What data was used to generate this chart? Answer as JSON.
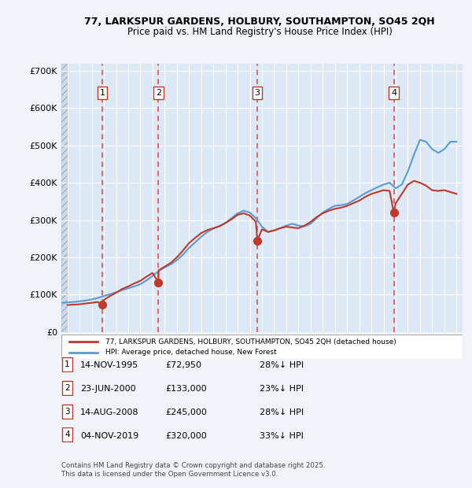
{
  "title_line1": "77, LARKSPUR GARDENS, HOLBURY, SOUTHAMPTON, SO45 2QH",
  "title_line2": "Price paid vs. HM Land Registry's House Price Index (HPI)",
  "ylabel": "",
  "background_color": "#f0f4fa",
  "plot_bg_color": "#dce8f5",
  "hatch_color": "#c0cfe0",
  "grid_color": "#ffffff",
  "sale_dates": [
    1995.87,
    2000.48,
    2008.62,
    2019.84
  ],
  "sale_prices": [
    72950,
    133000,
    245000,
    320000
  ],
  "sale_labels": [
    "1",
    "2",
    "3",
    "4"
  ],
  "sale_info": [
    {
      "label": "1",
      "date": "14-NOV-1995",
      "price": "£72,950",
      "pct": "28%↓ HPI"
    },
    {
      "label": "2",
      "date": "23-JUN-2000",
      "price": "£133,000",
      "pct": "23%↓ HPI"
    },
    {
      "label": "3",
      "date": "14-AUG-2008",
      "price": "£245,000",
      "pct": "28%↓ HPI"
    },
    {
      "label": "4",
      "date": "04-NOV-2019",
      "price": "£320,000",
      "pct": "33%↓ HPI"
    }
  ],
  "hpi_color": "#5b9bd5",
  "price_color": "#c0392b",
  "marker_color": "#c0392b",
  "vline_color": "#e05050",
  "ylim": [
    0,
    720000
  ],
  "yticks": [
    0,
    100000,
    200000,
    300000,
    400000,
    500000,
    600000,
    700000
  ],
  "ytick_labels": [
    "£0",
    "£100K",
    "£200K",
    "£300K",
    "£400K",
    "£500K",
    "£600K",
    "£700K"
  ],
  "xlim_start": 1992.5,
  "xlim_end": 2025.5,
  "xticks": [
    1993,
    1994,
    1995,
    1996,
    1997,
    1998,
    1999,
    2000,
    2001,
    2002,
    2003,
    2004,
    2005,
    2006,
    2007,
    2008,
    2009,
    2010,
    2011,
    2012,
    2013,
    2014,
    2015,
    2016,
    2017,
    2018,
    2019,
    2020,
    2021,
    2022,
    2023,
    2024,
    2025
  ],
  "legend_label_price": "77, LARKSPUR GARDENS, HOLBURY, SOUTHAMPTON, SO45 2QH (detached house)",
  "legend_label_hpi": "HPI: Average price, detached house, New Forest",
  "footer": "Contains HM Land Registry data © Crown copyright and database right 2025.\nThis data is licensed under the Open Government Licence v3.0.",
  "hpi_x": [
    1992.5,
    1993.0,
    1993.5,
    1994.0,
    1994.5,
    1995.0,
    1995.5,
    1996.0,
    1996.5,
    1997.0,
    1997.5,
    1998.0,
    1998.5,
    1999.0,
    1999.5,
    2000.0,
    2000.5,
    2001.0,
    2001.5,
    2002.0,
    2002.5,
    2003.0,
    2003.5,
    2004.0,
    2004.5,
    2005.0,
    2005.5,
    2006.0,
    2006.5,
    2007.0,
    2007.5,
    2008.0,
    2008.5,
    2009.0,
    2009.5,
    2010.0,
    2010.5,
    2011.0,
    2011.5,
    2012.0,
    2012.5,
    2013.0,
    2013.5,
    2014.0,
    2014.5,
    2015.0,
    2015.5,
    2016.0,
    2016.5,
    2017.0,
    2017.5,
    2018.0,
    2018.5,
    2019.0,
    2019.5,
    2020.0,
    2020.5,
    2021.0,
    2021.5,
    2022.0,
    2022.5,
    2023.0,
    2023.5,
    2024.0,
    2024.5,
    2025.0
  ],
  "hpi_y": [
    78000,
    79000,
    80000,
    82000,
    84000,
    87000,
    91000,
    96000,
    101000,
    106000,
    112000,
    117000,
    122000,
    128000,
    138000,
    150000,
    163000,
    173000,
    181000,
    192000,
    207000,
    225000,
    240000,
    255000,
    268000,
    277000,
    284000,
    292000,
    305000,
    318000,
    325000,
    320000,
    305000,
    282000,
    268000,
    272000,
    278000,
    285000,
    290000,
    285000,
    283000,
    290000,
    305000,
    320000,
    330000,
    338000,
    340000,
    343000,
    352000,
    362000,
    372000,
    380000,
    388000,
    395000,
    400000,
    385000,
    395000,
    430000,
    475000,
    515000,
    510000,
    490000,
    480000,
    490000,
    510000,
    510000
  ],
  "price_x": [
    1993.0,
    1993.5,
    1994.0,
    1994.5,
    1995.0,
    1995.5,
    1995.87,
    1996.0,
    1996.5,
    1997.0,
    1997.5,
    1998.0,
    1998.5,
    1999.0,
    1999.5,
    2000.0,
    2000.48,
    2000.5,
    2001.0,
    2001.5,
    2002.0,
    2002.5,
    2003.0,
    2003.5,
    2004.0,
    2004.5,
    2005.0,
    2005.5,
    2006.0,
    2006.5,
    2007.0,
    2007.5,
    2008.0,
    2008.5,
    2008.62,
    2009.0,
    2009.5,
    2010.0,
    2010.5,
    2011.0,
    2011.5,
    2012.0,
    2012.5,
    2013.0,
    2013.5,
    2014.0,
    2014.5,
    2015.0,
    2015.5,
    2016.0,
    2016.5,
    2017.0,
    2017.5,
    2018.0,
    2018.5,
    2019.0,
    2019.5,
    2019.84,
    2020.0,
    2020.5,
    2021.0,
    2021.5,
    2022.0,
    2022.5,
    2023.0,
    2023.5,
    2024.0,
    2024.5,
    2025.0
  ],
  "price_y": [
    72000,
    73000,
    74000,
    76000,
    78000,
    80000,
    72950,
    86000,
    96000,
    105000,
    115000,
    122000,
    130000,
    137000,
    148000,
    158000,
    133000,
    165000,
    175000,
    185000,
    200000,
    218000,
    238000,
    252000,
    265000,
    273000,
    278000,
    283000,
    292000,
    302000,
    314000,
    318000,
    312000,
    295000,
    245000,
    275000,
    268000,
    272000,
    278000,
    282000,
    280000,
    278000,
    285000,
    295000,
    308000,
    318000,
    325000,
    330000,
    333000,
    338000,
    345000,
    352000,
    362000,
    370000,
    375000,
    380000,
    378000,
    320000,
    345000,
    370000,
    395000,
    405000,
    400000,
    392000,
    380000,
    378000,
    380000,
    375000,
    370000
  ]
}
